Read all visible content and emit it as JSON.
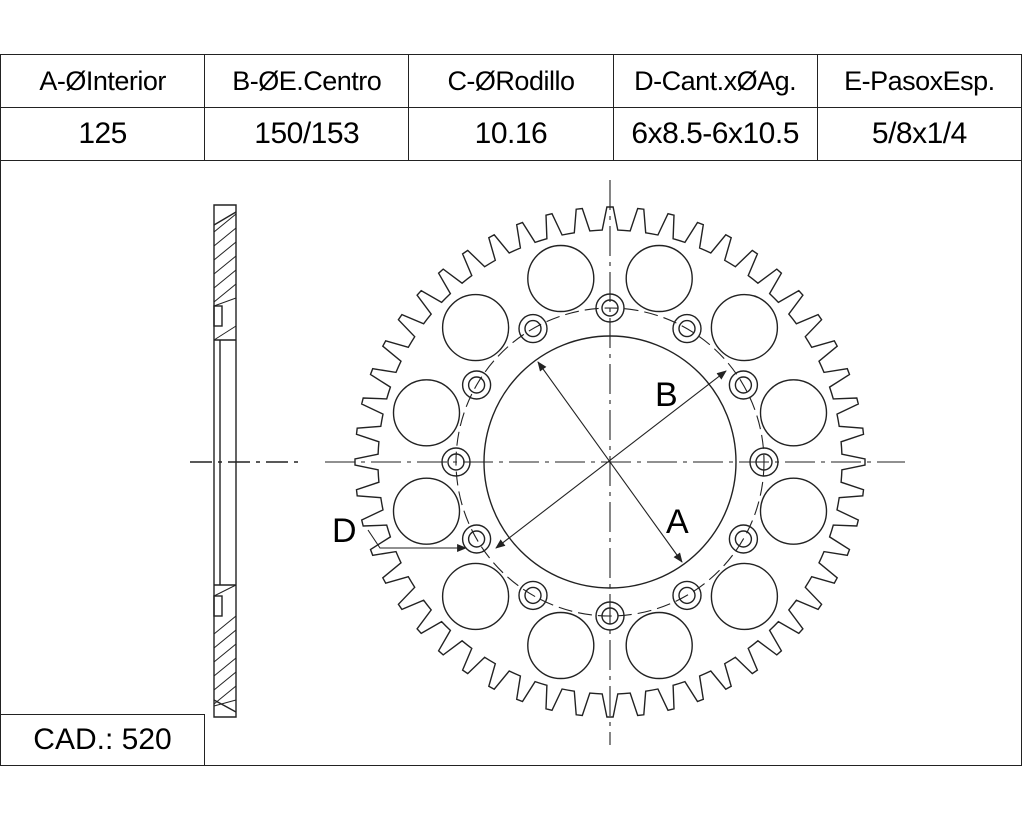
{
  "spec_table": {
    "headers": [
      "A-ØInterior",
      "B-ØE.Centro",
      "C-ØRodillo",
      "D-Cant.xØAg.",
      "E-PasoxEsp."
    ],
    "values": [
      "125",
      "150/153",
      "10.16",
      "6x8.5-6x10.5",
      "5/8x1/4"
    ]
  },
  "drawing": {
    "label_a": "A",
    "label_b": "B",
    "label_d": "D",
    "teeth": 52,
    "bolt_holes": 12,
    "lightening_holes": 12
  },
  "footer": {
    "cad_label": "CAD.: 520"
  },
  "colors": {
    "line": "#222222",
    "background": "#ffffff"
  }
}
